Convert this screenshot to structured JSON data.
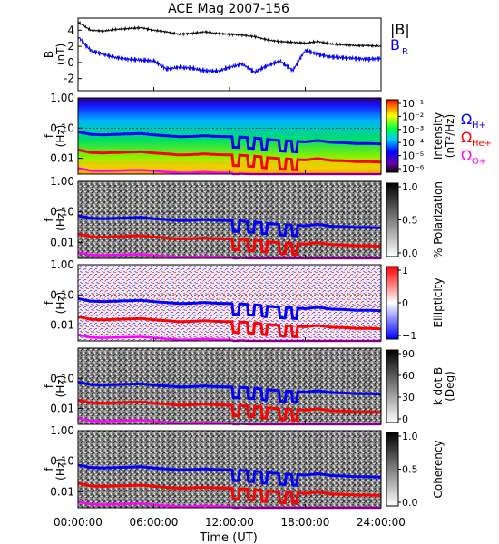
{
  "title": "ACE Mag 2007-156",
  "xaxis": {
    "label": "Time (UT)",
    "ticks": [
      "00:00:00",
      "06:00:00",
      "12:00:00",
      "18:00:00",
      "24:00:00"
    ],
    "range_hours": [
      0,
      24
    ]
  },
  "legend": {
    "b_mag": "|B|",
    "b_r": "B",
    "b_r_sub": "R",
    "omega_h_sub": "H+",
    "omega_he_sub": "He+",
    "omega_o_sub": "O+",
    "omega_symbol": "Ω"
  },
  "colors": {
    "b_mag": "#000000",
    "b_r": "#0000ff",
    "omega_h": "#0000ff",
    "omega_he": "#ff0000",
    "omega_o": "#ff00ff"
  },
  "chart_data": [
    {
      "type": "line",
      "panel": "field",
      "ylabel": "B",
      "yunit": "(nT)",
      "ylim": [
        -3.5,
        5.5
      ],
      "yticks": [
        "-2",
        "0",
        "2",
        "4"
      ],
      "x_hours": [
        0,
        1,
        2,
        3,
        4,
        5,
        6,
        7,
        8,
        9,
        10,
        11,
        12,
        13,
        14,
        15,
        16,
        17,
        18,
        19,
        20,
        21,
        22,
        23,
        24
      ],
      "series": [
        {
          "name": "|B|",
          "values": [
            5.0,
            4.0,
            3.9,
            4.1,
            4.2,
            4.3,
            4.0,
            3.8,
            3.5,
            3.6,
            3.8,
            3.6,
            3.5,
            3.4,
            3.2,
            2.8,
            2.6,
            2.5,
            2.4,
            2.6,
            2.3,
            2.2,
            2.1,
            2.1,
            2.0
          ]
        },
        {
          "name": "BR",
          "values": [
            3.2,
            1.5,
            1.0,
            0.6,
            0.4,
            0.3,
            0.2,
            -0.8,
            -0.6,
            -0.7,
            -1.0,
            -1.1,
            -0.6,
            -0.2,
            -1.2,
            -0.4,
            0.2,
            -1.0,
            1.5,
            1.0,
            0.7,
            0.6,
            0.5,
            0.4,
            0.5
          ]
        }
      ]
    },
    {
      "type": "heatmap",
      "panel": "intensity",
      "ylabel": "f",
      "yunit": "(Hz)",
      "yscale": "log",
      "ylim": [
        0.003,
        1.0
      ],
      "yticks": [
        "1.00",
        "0.10",
        "0.01"
      ],
      "colorbar": {
        "label": "Intensity",
        "unit": "(nT²/Hz)",
        "ticks": [
          "10⁻¹",
          "10⁻²",
          "10⁻³",
          "10⁻⁴",
          "10⁻⁵",
          "10⁻⁶"
        ],
        "range": [
          1e-06,
          0.1
        ],
        "scale": "log"
      }
    },
    {
      "type": "heatmap",
      "panel": "polarization",
      "ylabel": "f",
      "yunit": "(Hz)",
      "yscale": "log",
      "ylim": [
        0.003,
        1.0
      ],
      "yticks": [
        "1.00",
        "0.10",
        "0.01"
      ],
      "colorbar": {
        "label": "% Polarization",
        "unit": "",
        "ticks": [
          "1.0",
          "0.5",
          "0.0"
        ],
        "range": [
          0,
          1
        ]
      }
    },
    {
      "type": "heatmap",
      "panel": "ellipticity",
      "ylabel": "f",
      "yunit": "(Hz)",
      "yscale": "log",
      "ylim": [
        0.003,
        1.0
      ],
      "yticks": [
        "1.00",
        "0.10",
        "0.01"
      ],
      "colorbar": {
        "label": "Ellipticity",
        "unit": "",
        "ticks": [
          "1",
          "0",
          "−1"
        ],
        "range": [
          -1,
          1
        ]
      }
    },
    {
      "type": "heatmap",
      "panel": "kdotb",
      "ylabel": "f",
      "yunit": "(Hz)",
      "yscale": "log",
      "ylim": [
        0.003,
        1.0
      ],
      "yticks": [
        "0.10",
        "0.01"
      ],
      "colorbar": {
        "label": "k dot B",
        "unit": "(Deg)",
        "ticks": [
          "90",
          "60",
          "30",
          "0"
        ],
        "range": [
          0,
          90
        ]
      }
    },
    {
      "type": "heatmap",
      "panel": "coherency",
      "ylabel": "f",
      "yunit": "(Hz)",
      "yscale": "log",
      "ylim": [
        0.003,
        1.0
      ],
      "yticks": [
        "1.00",
        "0.10",
        "0.01"
      ],
      "colorbar": {
        "label": "Coherency",
        "unit": "",
        "ticks": [
          "1.0",
          "0.5",
          "0.0"
        ],
        "range": [
          0,
          1
        ]
      }
    }
  ],
  "gyrofrequency_hz": {
    "x_hours": [
      0,
      1,
      2,
      3,
      4,
      5,
      6,
      7,
      8,
      9,
      10,
      11,
      12,
      13,
      14,
      15,
      16,
      17,
      18,
      19,
      20,
      21,
      22,
      23,
      24
    ],
    "H+": [
      0.075,
      0.062,
      0.06,
      0.062,
      0.064,
      0.066,
      0.06,
      0.056,
      0.052,
      0.053,
      0.056,
      0.053,
      0.052,
      0.05,
      0.047,
      0.042,
      0.039,
      0.037,
      0.035,
      0.039,
      0.034,
      0.033,
      0.031,
      0.031,
      0.03
    ],
    "He+": [
      0.019,
      0.0155,
      0.015,
      0.0155,
      0.016,
      0.0165,
      0.015,
      0.014,
      0.013,
      0.0133,
      0.014,
      0.0133,
      0.013,
      0.0125,
      0.0118,
      0.0105,
      0.0098,
      0.0093,
      0.0088,
      0.0098,
      0.0085,
      0.0083,
      0.0078,
      0.0078,
      0.0075
    ],
    "O+": [
      0.0047,
      0.0039,
      0.0038,
      0.0039,
      0.004,
      0.0041,
      0.0038,
      0.0035,
      0.0033,
      0.0033,
      0.0035,
      0.0033,
      0.0033,
      0.0031,
      0.003,
      0.003,
      0.003,
      0.003,
      0.003,
      0.003,
      0.003,
      0.003,
      0.003,
      0.003,
      0.003
    ]
  },
  "dips": [
    {
      "start_hour": 12.3,
      "end_hour": 12.7
    },
    {
      "start_hour": 13.5,
      "end_hour": 13.9
    },
    {
      "start_hour": 14.6,
      "end_hour": 14.9
    },
    {
      "start_hour": 16.0,
      "end_hour": 16.4
    },
    {
      "start_hour": 17.0,
      "end_hour": 17.3
    }
  ]
}
